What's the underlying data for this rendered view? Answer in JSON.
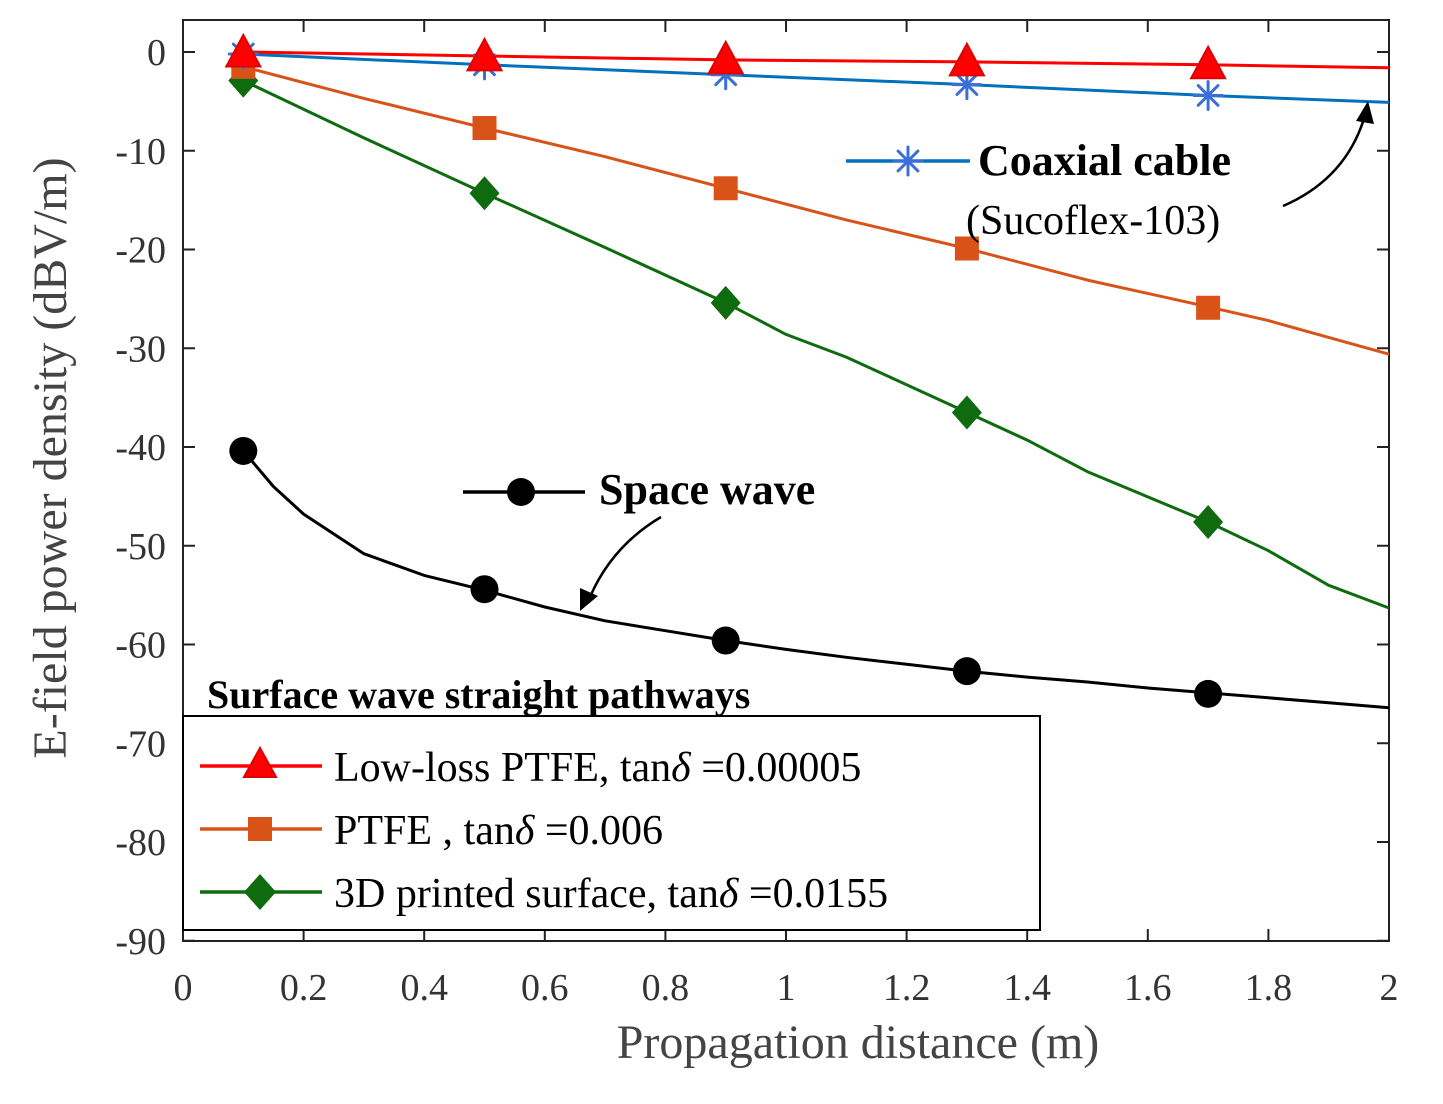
{
  "chart_data": {
    "type": "line",
    "title": "",
    "xlabel": "Propagation distance (m)",
    "ylabel": "E-field power density (dBV/m)",
    "xlim": [
      0,
      2
    ],
    "ylim": [
      -90,
      3
    ],
    "xticks": [
      0,
      0.2,
      0.4,
      0.6,
      0.8,
      1,
      1.2,
      1.4,
      1.6,
      1.8,
      2
    ],
    "xtick_labels": [
      "0",
      "0.2",
      "0.4",
      "0.6",
      "0.8",
      "1",
      "1.2",
      "1.4",
      "1.6",
      "1.8",
      "2"
    ],
    "yticks": [
      0,
      -10,
      -20,
      -30,
      -40,
      -50,
      -60,
      -70,
      -80,
      -90
    ],
    "ytick_labels": [
      "0",
      "-10",
      "-20",
      "-30",
      "-40",
      "-50",
      "-60",
      "-70",
      "-80",
      "-90"
    ],
    "grid": false,
    "series": [
      {
        "name": "Low-loss PTFE, tanδ =0.00005",
        "color": "#ff0000",
        "marker": "triangle",
        "x": [
          0.1,
          0.5,
          0.9,
          1.3,
          1.7,
          2.0
        ],
        "y": [
          0.0,
          -0.4,
          -0.8,
          -1.0,
          -1.3,
          -1.6
        ],
        "marker_x": [
          0.1,
          0.5,
          0.9,
          1.3,
          1.7
        ],
        "marker_y": [
          0.0,
          -0.4,
          -0.7,
          -0.9,
          -1.2
        ]
      },
      {
        "name": "PTFE , tanδ =0.006",
        "color": "#d95319",
        "marker": "square",
        "x": [
          0.1,
          0.3,
          0.5,
          0.7,
          0.9,
          1.1,
          1.3,
          1.5,
          1.7,
          1.8,
          1.9,
          2.0
        ],
        "y": [
          -1.5,
          -4.7,
          -7.7,
          -10.6,
          -13.8,
          -17.0,
          -19.9,
          -23.1,
          -25.8,
          -27.2,
          -28.9,
          -30.6
        ],
        "marker_x": [
          0.1,
          0.5,
          0.9,
          1.3,
          1.7
        ],
        "marker_y": [
          -1.5,
          -7.7,
          -13.8,
          -19.9,
          -25.9
        ]
      },
      {
        "name": "3D printed surface, tanδ =0.0155",
        "color": "#0e6b0e",
        "marker": "diamond",
        "x": [
          0.1,
          0.3,
          0.5,
          0.7,
          0.9,
          1.0,
          1.1,
          1.3,
          1.4,
          1.5,
          1.7,
          1.8,
          1.9,
          2.0
        ],
        "y": [
          -2.9,
          -8.7,
          -14.3,
          -19.8,
          -25.4,
          -28.6,
          -30.9,
          -36.5,
          -39.3,
          -42.5,
          -47.6,
          -50.5,
          -54.0,
          -56.3
        ],
        "marker_x": [
          0.1,
          0.5,
          0.9,
          1.3,
          1.7
        ],
        "marker_y": [
          -2.9,
          -14.3,
          -25.4,
          -36.5,
          -47.6
        ]
      },
      {
        "name": "Coaxial cable (Sucoflex-103)",
        "color": "#0072bd",
        "marker": "asterisk",
        "x": [
          0.1,
          0.5,
          0.9,
          1.3,
          1.7,
          2.0
        ],
        "y": [
          -0.2,
          -1.3,
          -2.3,
          -3.3,
          -4.4,
          -5.1
        ],
        "marker_x": [
          0.1,
          0.5,
          0.9,
          1.3,
          1.7
        ],
        "marker_y": [
          -0.2,
          -1.3,
          -2.3,
          -3.3,
          -4.4
        ]
      },
      {
        "name": "Space wave",
        "color": "#000000",
        "marker": "circle",
        "x": [
          0.1,
          0.15,
          0.2,
          0.3,
          0.4,
          0.5,
          0.6,
          0.7,
          0.8,
          0.9,
          1.0,
          1.1,
          1.2,
          1.3,
          1.4,
          1.5,
          1.6,
          1.7,
          1.8,
          1.9,
          2.0
        ],
        "y": [
          -40.4,
          -44.0,
          -46.8,
          -50.8,
          -53.0,
          -54.5,
          -56.2,
          -57.6,
          -58.6,
          -59.6,
          -60.5,
          -61.3,
          -62.0,
          -62.7,
          -63.3,
          -63.8,
          -64.4,
          -64.9,
          -65.4,
          -65.9,
          -66.4
        ],
        "marker_x": [
          0.1,
          0.5,
          0.9,
          1.3,
          1.7
        ],
        "marker_y": [
          -40.4,
          -54.4,
          -59.6,
          -62.7,
          -65.0
        ]
      }
    ],
    "annotations": {
      "coax_title": "Coaxial cable",
      "coax_subtitle": "(Sucoflex-103)",
      "space_wave": "Space wave"
    },
    "legend": {
      "title": "Surface wave straight pathways",
      "position": "bottom-left",
      "entries": [
        {
          "text": "Low-loss PTFE, tan",
          "symbol": "δ",
          "value": " =0.00005"
        },
        {
          "text": "PTFE , tan",
          "symbol": "δ",
          "value": " =0.006"
        },
        {
          "text": "3D printed surface, tan",
          "symbol": "δ",
          "value": " =0.0155"
        }
      ]
    }
  }
}
